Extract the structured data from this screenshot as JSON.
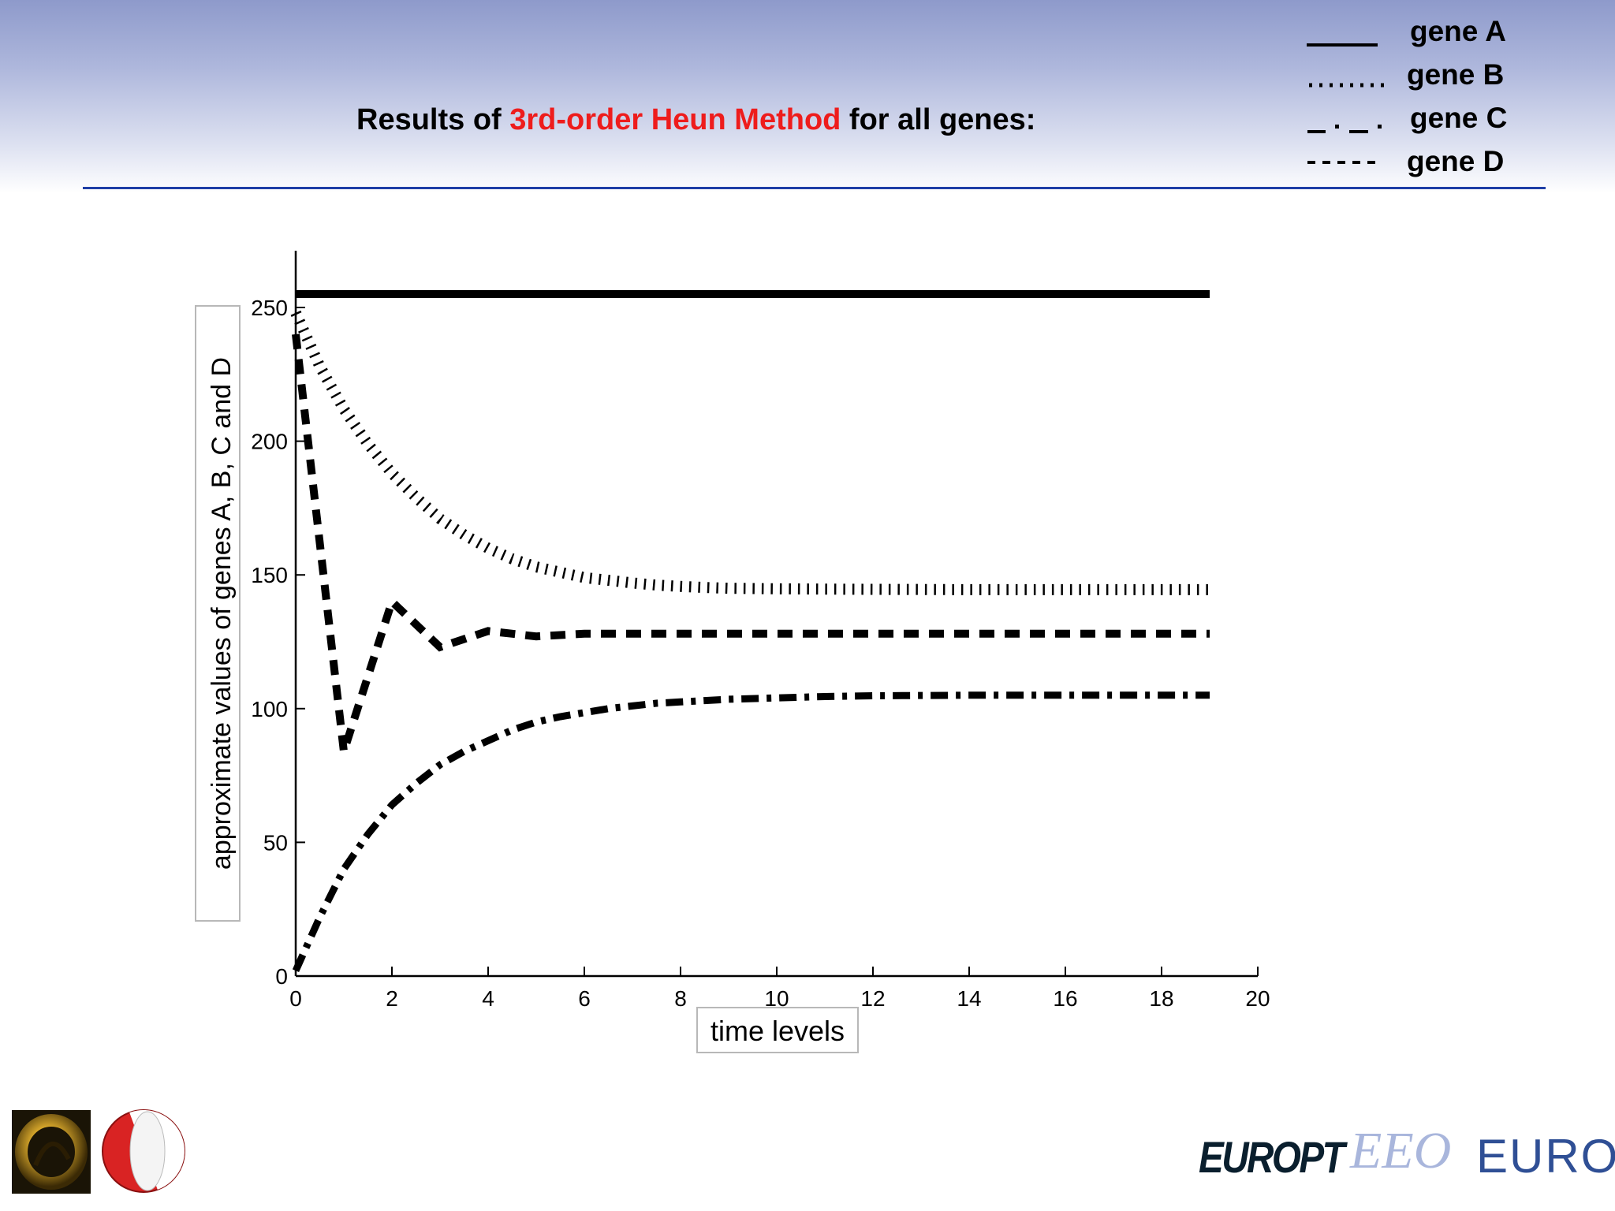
{
  "slide": {
    "title_before": "Results of ",
    "title_highlight": "3rd-order Heun Method",
    "title_after": " for all genes:",
    "colors": {
      "highlight": "#ee1c1c",
      "divider": "#1f3fa6"
    }
  },
  "legend": [
    {
      "symbol": "____",
      "label": "gene A",
      "style": "solid"
    },
    {
      "symbol": "........",
      "label": "gene B",
      "style": "dotted"
    },
    {
      "symbol": "_ . _ .",
      "label": "gene C",
      "style": "dash-dot"
    },
    {
      "symbol": "- - - -",
      "label": "gene D",
      "style": "dashed"
    }
  ],
  "chart_data": {
    "type": "line",
    "title": "",
    "xlabel": "time levels",
    "ylabel": "approximate values of genes A, B, C and D",
    "xlim": [
      0,
      20
    ],
    "ylim": [
      0,
      270
    ],
    "xticks": [
      0,
      2,
      4,
      6,
      8,
      10,
      12,
      14,
      16,
      18,
      20
    ],
    "yticks": [
      0,
      50,
      100,
      150,
      200,
      250
    ],
    "grid": false,
    "series": [
      {
        "name": "gene A",
        "style": "solid",
        "x": [
          0,
          19
        ],
        "y": [
          255,
          255
        ]
      },
      {
        "name": "gene B",
        "style": "dotted",
        "x": [
          0,
          0.5,
          1,
          1.5,
          2,
          2.5,
          3,
          3.5,
          4,
          4.5,
          5,
          5.5,
          6,
          6.5,
          7,
          7.5,
          8,
          8.5,
          9,
          10,
          11,
          12,
          14,
          16,
          19
        ],
        "y": [
          248,
          228,
          212,
          199,
          188,
          179,
          171,
          165,
          160,
          156,
          153,
          151,
          149,
          148,
          147,
          146.2,
          145.7,
          145.3,
          145,
          144.8,
          144.7,
          144.6,
          144.5,
          144.5,
          144.5
        ]
      },
      {
        "name": "gene C",
        "style": "dash-dot",
        "x": [
          0,
          0.5,
          1,
          1.5,
          2,
          2.5,
          3,
          3.5,
          4,
          4.5,
          5,
          5.5,
          6,
          6.5,
          7,
          7.5,
          8,
          8.5,
          9,
          10,
          11,
          12,
          14,
          16,
          19
        ],
        "y": [
          2,
          22,
          40,
          53,
          64,
          72,
          79,
          84,
          88,
          92,
          95,
          97,
          98.5,
          100,
          101,
          102,
          102.5,
          103,
          103.5,
          104,
          104.5,
          104.8,
          105,
          105,
          105
        ]
      },
      {
        "name": "gene D",
        "style": "dashed",
        "x": [
          0,
          1,
          2,
          3,
          4,
          5,
          6,
          7,
          8,
          9,
          10,
          11,
          12,
          13,
          14,
          15,
          16,
          17,
          18,
          19
        ],
        "y": [
          240,
          84,
          140,
          123,
          129,
          127,
          128,
          128,
          128,
          128,
          128,
          128,
          128,
          128,
          128,
          128,
          128,
          128,
          128,
          128
        ]
      }
    ]
  },
  "logos": {
    "left": [
      "gold-ring-logo",
      "red-white-university-logo"
    ],
    "right": [
      "EUROPT",
      "EEO",
      "EURO"
    ]
  }
}
